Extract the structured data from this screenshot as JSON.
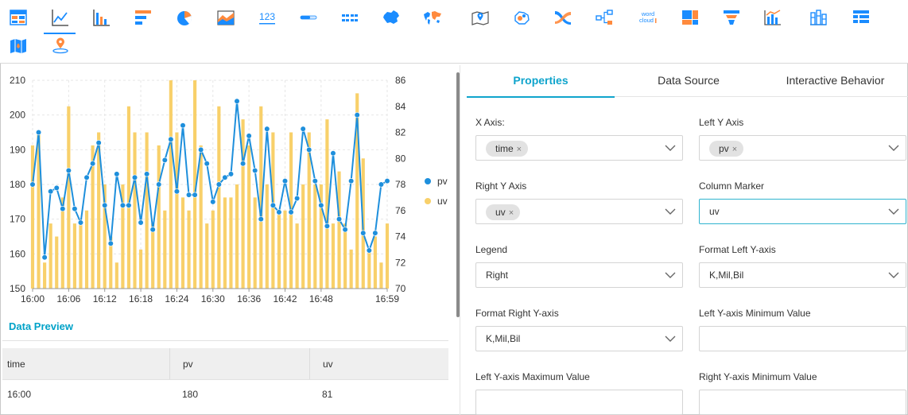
{
  "toolbar": {
    "icons": [
      {
        "name": "table-chart-icon"
      },
      {
        "name": "line-chart-icon",
        "active": true
      },
      {
        "name": "bar-chart-icon"
      },
      {
        "name": "horizontal-bar-chart-icon"
      },
      {
        "name": "pie-chart-icon"
      },
      {
        "name": "area-chart-icon"
      },
      {
        "name": "number-kpi-icon",
        "text": "123"
      },
      {
        "name": "progress-bar-icon"
      },
      {
        "name": "ticker-board-icon"
      },
      {
        "name": "china-map-icon"
      },
      {
        "name": "world-map-icon"
      },
      {
        "name": "pin-map-icon"
      },
      {
        "name": "bubble-map-icon"
      },
      {
        "name": "sankey-icon"
      },
      {
        "name": "tree-chart-icon"
      },
      {
        "name": "word-cloud-icon",
        "text": "word cloud"
      },
      {
        "name": "treemap-icon"
      },
      {
        "name": "funnel-icon"
      },
      {
        "name": "combo-chart-icon"
      },
      {
        "name": "stacked-bar-icon"
      },
      {
        "name": "cross-table-icon"
      },
      {
        "name": "folded-map-icon"
      },
      {
        "name": "location-pin-icon"
      }
    ],
    "colors": {
      "blue": "#1a8cff",
      "orange": "#ff8a3d",
      "cyan": "#19b5d6"
    }
  },
  "chart_data": {
    "type": "line",
    "x": [
      "16:00",
      "16:01",
      "16:02",
      "16:03",
      "16:04",
      "16:05",
      "16:06",
      "16:07",
      "16:08",
      "16:09",
      "16:10",
      "16:11",
      "16:12",
      "16:13",
      "16:14",
      "16:15",
      "16:16",
      "16:17",
      "16:18",
      "16:19",
      "16:20",
      "16:21",
      "16:22",
      "16:23",
      "16:24",
      "16:25",
      "16:26",
      "16:27",
      "16:28",
      "16:29",
      "16:30",
      "16:31",
      "16:32",
      "16:33",
      "16:34",
      "16:35",
      "16:36",
      "16:37",
      "16:38",
      "16:39",
      "16:40",
      "16:41",
      "16:42",
      "16:43",
      "16:44",
      "16:45",
      "16:46",
      "16:47",
      "16:48",
      "16:49",
      "16:50",
      "16:51",
      "16:52",
      "16:53",
      "16:54",
      "16:55",
      "16:56",
      "16:57",
      "16:58",
      "16:59"
    ],
    "xticks": [
      "16:00",
      "16:06",
      "16:12",
      "16:18",
      "16:24",
      "16:30",
      "16:36",
      "16:42",
      "16:48",
      "16:59"
    ],
    "series": [
      {
        "name": "pv",
        "type": "line",
        "axis": "left",
        "values": [
          180,
          195,
          159,
          178,
          179,
          173,
          184,
          173,
          169,
          182,
          186,
          192,
          174,
          163,
          183,
          174,
          174,
          182,
          169,
          183,
          167,
          180,
          187,
          193,
          178,
          197,
          177,
          177,
          190,
          186,
          175,
          180,
          182,
          183,
          204,
          186,
          194,
          184,
          170,
          196,
          174,
          172,
          181,
          172,
          176,
          196,
          190,
          181,
          174,
          168,
          189,
          170,
          167,
          181,
          200,
          166,
          161,
          166,
          180,
          181
        ],
        "color": "#1e8fdc"
      },
      {
        "name": "uv",
        "type": "bar",
        "axis": "right",
        "values": [
          81,
          82,
          72,
          75,
          74,
          77,
          84,
          75,
          75,
          76,
          81,
          82,
          78,
          74,
          72,
          78,
          84,
          82,
          73,
          82,
          75,
          81,
          76,
          86,
          82,
          77,
          76,
          86,
          81,
          75,
          76,
          84,
          77,
          77,
          78,
          83,
          81,
          77,
          84,
          78,
          82,
          76,
          76,
          82,
          75,
          78,
          82,
          78,
          78,
          83,
          75,
          79,
          75,
          73,
          85,
          80,
          73,
          74,
          72,
          75
        ],
        "color": "#f8d06a"
      }
    ],
    "ylim_left": [
      150,
      210
    ],
    "yticks_left": [
      150,
      160,
      170,
      180,
      190,
      200,
      210
    ],
    "ylim_right": [
      70,
      86
    ],
    "yticks_right": [
      70,
      72,
      74,
      76,
      78,
      80,
      82,
      84,
      86
    ],
    "legend": "right",
    "grid": true
  },
  "legend": {
    "pv": "pv",
    "uv": "uv"
  },
  "preview": {
    "title": "Data Preview",
    "columns": [
      "time",
      "pv",
      "uv"
    ],
    "rows": [
      [
        "16:00",
        "180",
        "81"
      ]
    ]
  },
  "tabs": [
    "Properties",
    "Data Source",
    "Interactive Behavior"
  ],
  "form": {
    "x_axis": {
      "label": "X Axis:",
      "chip": "time"
    },
    "left_y_axis": {
      "label": "Left Y Axis",
      "chip": "pv"
    },
    "right_y_axis": {
      "label": "Right Y Axis",
      "chip": "uv"
    },
    "column_marker": {
      "label": "Column Marker",
      "value": "uv"
    },
    "legend": {
      "label": "Legend",
      "value": "Right"
    },
    "format_left": {
      "label": "Format Left Y-axis",
      "value": "K,Mil,Bil"
    },
    "format_right": {
      "label": "Format Right Y-axis",
      "value": "K,Mil,Bil"
    },
    "left_min": {
      "label": "Left Y-axis Minimum Value",
      "value": ""
    },
    "left_max": {
      "label": "Left Y-axis Maximum Value",
      "value": ""
    },
    "right_min": {
      "label": "Right Y-axis Minimum Value",
      "value": ""
    }
  },
  "chip_remove_glyph": "×"
}
